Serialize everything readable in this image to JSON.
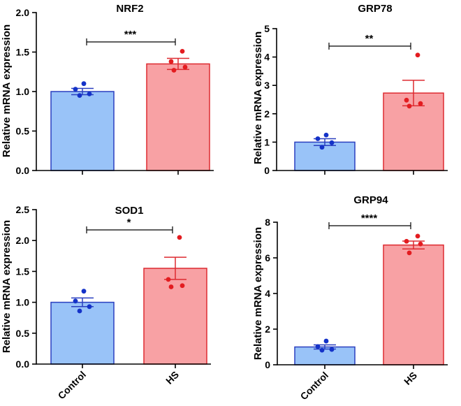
{
  "chart_data": [
    {
      "type": "bar",
      "title": "NRF2",
      "ylabel": "Relative mRNA expression",
      "xlabel": "",
      "categories": [
        "Control",
        "HS"
      ],
      "ylim": [
        0,
        2.0
      ],
      "yticks": [
        "0.0",
        "0.5",
        "1.0",
        "1.5",
        "2.0"
      ],
      "yticks_values": [
        0,
        0.5,
        1.0,
        1.5,
        2.0
      ],
      "values": [
        1.0,
        1.35
      ],
      "sem": [
        0.04,
        0.07
      ],
      "points": [
        [
          1.1,
          1.03,
          0.97,
          0.95
        ],
        [
          1.51,
          1.38,
          1.31,
          1.27
        ]
      ],
      "significance": "***",
      "show_category_labels": false
    },
    {
      "type": "bar",
      "title": "GRP78",
      "ylabel": "Relative mRNA expression",
      "xlabel": "",
      "categories": [
        "Control",
        "HS"
      ],
      "ylim": [
        0,
        5
      ],
      "yticks": [
        "0",
        "1",
        "2",
        "3",
        "4",
        "5"
      ],
      "yticks_values": [
        0,
        1,
        2,
        3,
        4,
        5
      ],
      "values": [
        1.0,
        2.73
      ],
      "sem": [
        0.12,
        0.45
      ],
      "points": [
        [
          1.25,
          1.12,
          0.98,
          0.82
        ],
        [
          4.07,
          2.48,
          2.36,
          2.27
        ]
      ],
      "significance": "**",
      "show_category_labels": false
    },
    {
      "type": "bar",
      "title": "SOD1",
      "ylabel": "Relative mRNA expression",
      "xlabel": "",
      "categories": [
        "Control",
        "HS"
      ],
      "ylim": [
        0,
        2.5
      ],
      "yticks": [
        "0.0",
        "0.5",
        "1.0",
        "1.5",
        "2.0",
        "2.5"
      ],
      "yticks_values": [
        0,
        0.5,
        1.0,
        1.5,
        2.0,
        2.5
      ],
      "values": [
        1.0,
        1.55
      ],
      "sem": [
        0.07,
        0.18
      ],
      "points": [
        [
          1.18,
          1.02,
          0.93,
          0.86
        ],
        [
          2.05,
          1.37,
          1.27,
          1.25
        ]
      ],
      "significance": "*",
      "show_category_labels": true
    },
    {
      "type": "bar",
      "title": "GRP94",
      "ylabel": "Relative mRNA expression",
      "xlabel": "",
      "categories": [
        "Control",
        "HS"
      ],
      "ylim": [
        0,
        8
      ],
      "yticks": [
        "0",
        "2",
        "4",
        "6",
        "8"
      ],
      "yticks_values": [
        0,
        2,
        4,
        6,
        8
      ],
      "values": [
        1.0,
        6.72
      ],
      "sem": [
        0.12,
        0.22
      ],
      "points": [
        [
          1.33,
          1.02,
          0.86,
          0.82
        ],
        [
          7.22,
          6.93,
          6.78,
          6.28
        ]
      ],
      "significance": "****",
      "show_category_labels": true
    }
  ],
  "colors": {
    "control_fill": "#99c3f8",
    "control_stroke": "#2a3fbf",
    "control_point": "#1432c8",
    "hs_fill": "#f8a1a4",
    "hs_stroke": "#dd2a30",
    "hs_point": "#e31c20",
    "axis": "#000000"
  }
}
